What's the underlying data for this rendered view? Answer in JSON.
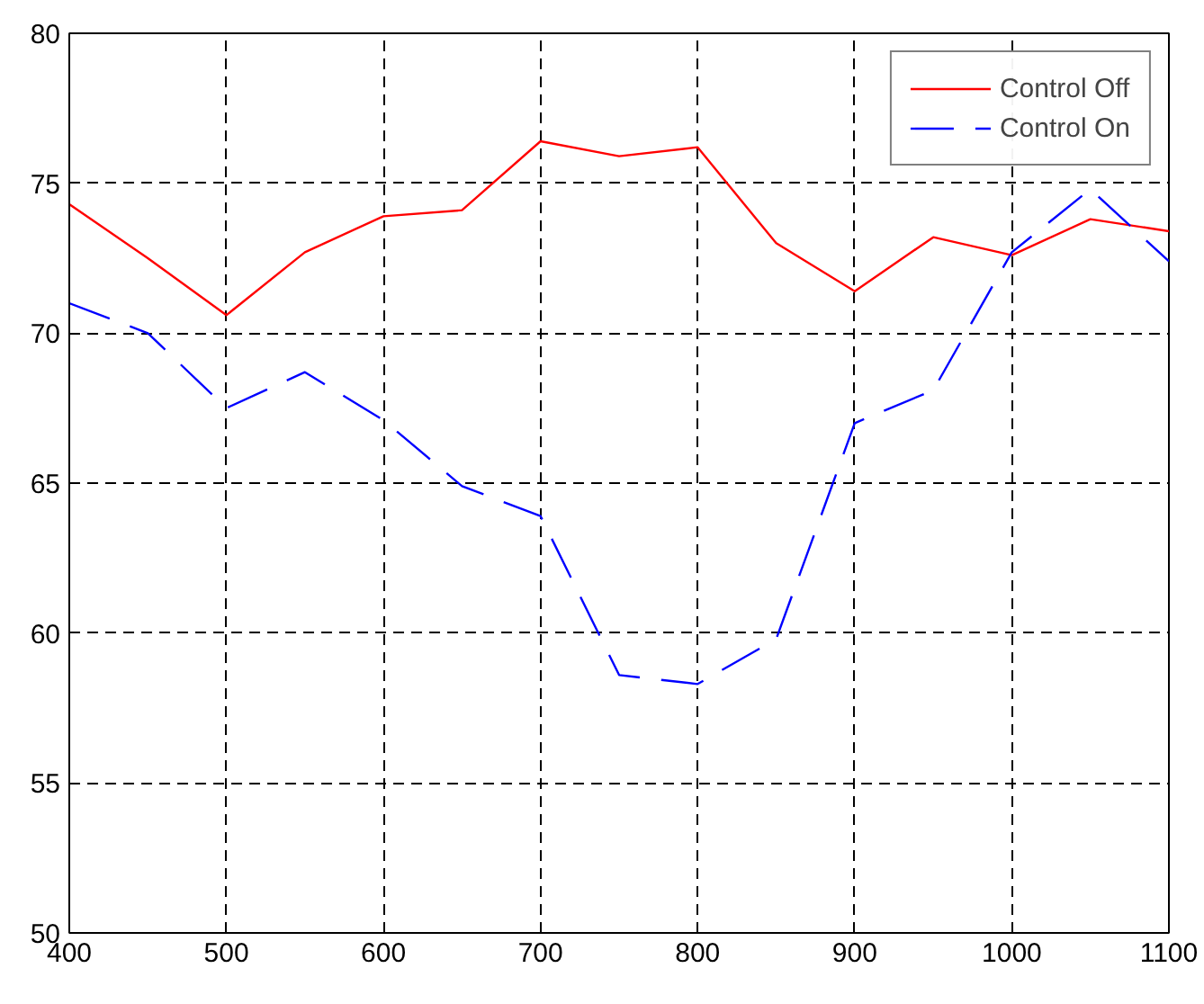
{
  "chart_data": {
    "type": "line",
    "x": [
      400,
      450,
      500,
      550,
      600,
      650,
      700,
      750,
      800,
      850,
      900,
      950,
      1000,
      1050,
      1100
    ],
    "series": [
      {
        "name": "Control Off",
        "color": "#ff0000",
        "line_style": "solid",
        "values": [
          74.3,
          72.5,
          70.6,
          72.7,
          73.9,
          74.1,
          76.4,
          75.9,
          76.2,
          73.0,
          71.4,
          73.2,
          72.6,
          73.8,
          73.4
        ]
      },
      {
        "name": "Control On",
        "color": "#0000ff",
        "line_style": "dashed",
        "values": [
          71.0,
          70.0,
          67.5,
          68.7,
          67.1,
          64.9,
          63.9,
          58.6,
          58.3,
          59.8,
          67.0,
          68.1,
          72.7,
          74.8,
          72.4
        ]
      }
    ],
    "xlim": [
      400,
      1100
    ],
    "xticks": [
      400,
      500,
      600,
      700,
      800,
      900,
      1000,
      1100
    ],
    "ylim": [
      50,
      80
    ],
    "yticks": [
      50,
      55,
      60,
      65,
      70,
      75,
      80
    ],
    "grid": true,
    "legend": "top right",
    "marker": "none"
  }
}
